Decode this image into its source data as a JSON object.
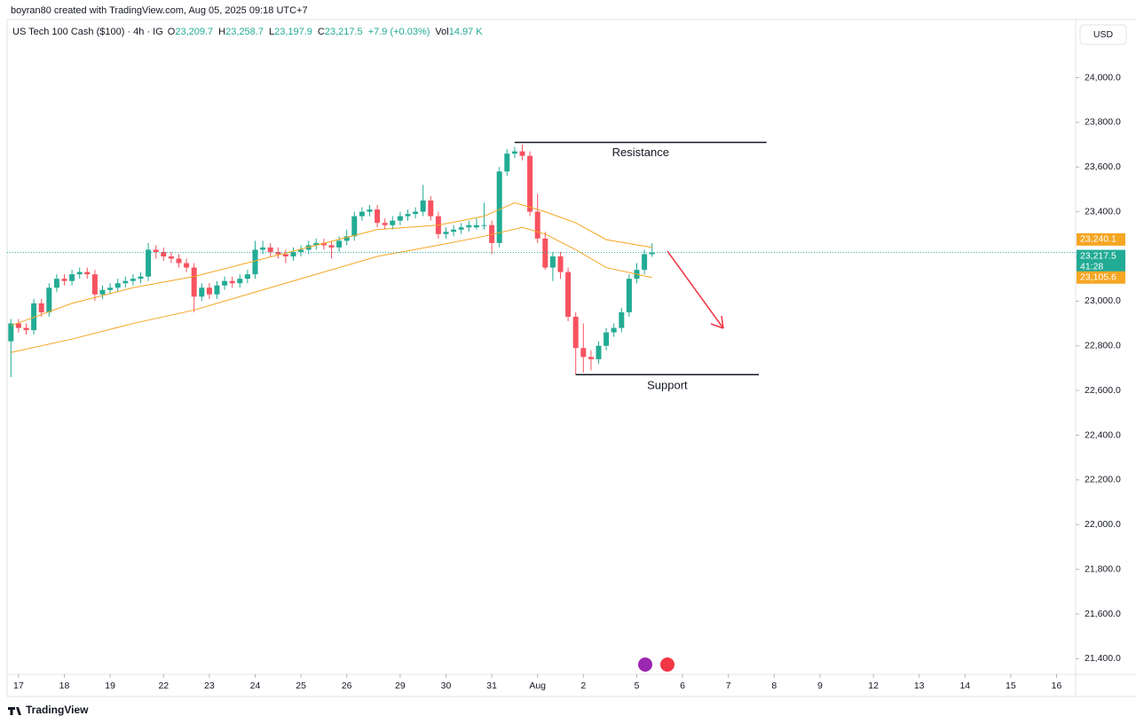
{
  "chart_data": {
    "type": "candlestick",
    "credit": "boyran80 created with TradingView.com, Aug 05, 2025 09:18 UTC+7",
    "title": "US Tech 100 Cash ($100) · 4h · IG",
    "legend": [
      {
        "label": "O",
        "value": "23,209.7"
      },
      {
        "label": "H",
        "value": "23,258.7"
      },
      {
        "label": "L",
        "value": "23,197.9"
      },
      {
        "label": "C",
        "value": "23,217.5"
      },
      {
        "label": "",
        "value": "+7.9 (+0.03%)"
      },
      {
        "label": "Vol",
        "value": "14.97 K"
      }
    ],
    "currency": "USD",
    "logo": "TradingView",
    "up_color": "#22ab94",
    "down_color": "#f7525f",
    "xlim": [
      -0.5,
      139.5
    ],
    "ylim": [
      21330,
      24260
    ],
    "xticks": [
      {
        "value": 1,
        "label": "17"
      },
      {
        "value": 7,
        "label": "18"
      },
      {
        "value": 13,
        "label": "19"
      },
      {
        "value": 20,
        "label": "22"
      },
      {
        "value": 26,
        "label": "23"
      },
      {
        "value": 32,
        "label": "24"
      },
      {
        "value": 38,
        "label": "25"
      },
      {
        "value": 44,
        "label": "26"
      },
      {
        "value": 51,
        "label": "29"
      },
      {
        "value": 57,
        "label": "30"
      },
      {
        "value": 63,
        "label": "31"
      },
      {
        "value": 69,
        "label": "Aug"
      },
      {
        "value": 75,
        "label": "2"
      },
      {
        "value": 82,
        "label": "5"
      },
      {
        "value": 88,
        "label": "6"
      },
      {
        "value": 94,
        "label": "7"
      },
      {
        "value": 100,
        "label": "8"
      },
      {
        "value": 106,
        "label": "9"
      },
      {
        "value": 113,
        "label": "12"
      },
      {
        "value": 119,
        "label": "13"
      },
      {
        "value": 125,
        "label": "14"
      },
      {
        "value": 131,
        "label": "15"
      },
      {
        "value": 137,
        "label": "16"
      }
    ],
    "yticks": [
      {
        "value": 21400,
        "label": "21,400.0"
      },
      {
        "value": 21600,
        "label": "21,600.0"
      },
      {
        "value": 21800,
        "label": "21,800.0"
      },
      {
        "value": 22000,
        "label": "22,000.0"
      },
      {
        "value": 22200,
        "label": "22,200.0"
      },
      {
        "value": 22400,
        "label": "22,400.0"
      },
      {
        "value": 22600,
        "label": "22,600.0"
      },
      {
        "value": 22800,
        "label": "22,800.0"
      },
      {
        "value": 23000,
        "label": "23,000.0"
      },
      {
        "value": 23200,
        "label": "23,200.0"
      },
      {
        "value": 23400,
        "label": "23,400.0"
      },
      {
        "value": 23600,
        "label": "23,600.0"
      },
      {
        "value": 23800,
        "label": "23,800.0"
      },
      {
        "value": 24000,
        "label": "24,000.0"
      }
    ],
    "ohlc": [
      [
        22820,
        22920,
        22660,
        22900
      ],
      [
        22900,
        22920,
        22860,
        22880
      ],
      [
        22880,
        22900,
        22850,
        22870
      ],
      [
        22870,
        23010,
        22850,
        22990
      ],
      [
        22990,
        23010,
        22930,
        22950
      ],
      [
        22950,
        23080,
        22930,
        23060
      ],
      [
        23060,
        23120,
        23040,
        23100
      ],
      [
        23100,
        23120,
        23070,
        23090
      ],
      [
        23090,
        23140,
        23070,
        23120
      ],
      [
        23120,
        23150,
        23100,
        23130
      ],
      [
        23130,
        23150,
        23100,
        23120
      ],
      [
        23120,
        23140,
        23000,
        23030
      ],
      [
        23030,
        23070,
        23010,
        23050
      ],
      [
        23050,
        23080,
        23030,
        23060
      ],
      [
        23060,
        23100,
        23040,
        23080
      ],
      [
        23080,
        23110,
        23060,
        23090
      ],
      [
        23090,
        23120,
        23070,
        23100
      ],
      [
        23100,
        23130,
        23080,
        23110
      ],
      [
        23110,
        23260,
        23090,
        23230
      ],
      [
        23230,
        23250,
        23190,
        23220
      ],
      [
        23220,
        23240,
        23180,
        23200
      ],
      [
        23200,
        23220,
        23170,
        23190
      ],
      [
        23190,
        23210,
        23150,
        23170
      ],
      [
        23170,
        23190,
        23130,
        23150
      ],
      [
        23150,
        23170,
        22950,
        23020
      ],
      [
        23020,
        23080,
        23000,
        23060
      ],
      [
        23060,
        23080,
        23010,
        23030
      ],
      [
        23030,
        23090,
        23010,
        23070
      ],
      [
        23070,
        23110,
        23050,
        23090
      ],
      [
        23090,
        23110,
        23060,
        23080
      ],
      [
        23080,
        23120,
        23060,
        23100
      ],
      [
        23100,
        23140,
        23080,
        23120
      ],
      [
        23120,
        23270,
        23100,
        23230
      ],
      [
        23230,
        23270,
        23210,
        23240
      ],
      [
        23240,
        23260,
        23200,
        23220
      ],
      [
        23220,
        23240,
        23190,
        23210
      ],
      [
        23210,
        23230,
        23170,
        23200
      ],
      [
        23200,
        23240,
        23180,
        23220
      ],
      [
        23220,
        23250,
        23200,
        23230
      ],
      [
        23230,
        23270,
        23210,
        23250
      ],
      [
        23250,
        23280,
        23230,
        23260
      ],
      [
        23260,
        23280,
        23230,
        23250
      ],
      [
        23250,
        23270,
        23190,
        23240
      ],
      [
        23240,
        23290,
        23220,
        23270
      ],
      [
        23270,
        23320,
        23250,
        23290
      ],
      [
        23290,
        23400,
        23270,
        23380
      ],
      [
        23380,
        23420,
        23360,
        23400
      ],
      [
        23400,
        23430,
        23380,
        23410
      ],
      [
        23410,
        23430,
        23330,
        23350
      ],
      [
        23350,
        23370,
        23320,
        23340
      ],
      [
        23340,
        23380,
        23320,
        23360
      ],
      [
        23360,
        23400,
        23340,
        23380
      ],
      [
        23380,
        23410,
        23360,
        23390
      ],
      [
        23390,
        23420,
        23370,
        23400
      ],
      [
        23400,
        23520,
        23380,
        23450
      ],
      [
        23450,
        23470,
        23360,
        23380
      ],
      [
        23380,
        23400,
        23280,
        23300
      ],
      [
        23300,
        23330,
        23280,
        23310
      ],
      [
        23310,
        23340,
        23290,
        23320
      ],
      [
        23320,
        23350,
        23300,
        23330
      ],
      [
        23330,
        23360,
        23310,
        23340
      ],
      [
        23330,
        23370,
        23320,
        23340
      ],
      [
        23340,
        23440,
        23320,
        23340
      ],
      [
        23340,
        23360,
        23210,
        23260
      ],
      [
        23260,
        23600,
        23240,
        23580
      ],
      [
        23580,
        23680,
        23560,
        23660
      ],
      [
        23660,
        23690,
        23640,
        23670
      ],
      [
        23670,
        23700,
        23630,
        23650
      ],
      [
        23650,
        23670,
        23380,
        23400
      ],
      [
        23400,
        23480,
        23260,
        23280
      ],
      [
        23280,
        23310,
        23140,
        23150
      ],
      [
        23150,
        23220,
        23090,
        23200
      ],
      [
        23200,
        23220,
        23100,
        23130
      ],
      [
        23130,
        23150,
        22910,
        22930
      ],
      [
        22930,
        22950,
        22670,
        22790
      ],
      [
        22790,
        22900,
        22680,
        22750
      ],
      [
        22750,
        22780,
        22690,
        22740
      ],
      [
        22740,
        22820,
        22720,
        22800
      ],
      [
        22800,
        22880,
        22780,
        22860
      ],
      [
        22860,
        22900,
        22840,
        22880
      ],
      [
        22880,
        22970,
        22860,
        22950
      ],
      [
        22950,
        23120,
        22930,
        23100
      ],
      [
        23100,
        23170,
        23080,
        23140
      ],
      [
        23140,
        23230,
        23120,
        23210
      ],
      [
        23209.7,
        23258.7,
        23197.9,
        23217.5
      ]
    ],
    "lines": [
      {
        "color": "#f5a623",
        "x": [
          0,
          8,
          16,
          24,
          32,
          40,
          48,
          56,
          62,
          66,
          70,
          74,
          78,
          84
        ],
        "values": [
          22890,
          22990,
          23060,
          23110,
          23180,
          23250,
          23320,
          23340,
          23380,
          23440,
          23400,
          23350,
          23275,
          23240.1
        ]
      },
      {
        "color": "#f5a623",
        "x": [
          0,
          8,
          16,
          24,
          32,
          40,
          48,
          56,
          62,
          67,
          70,
          74,
          78,
          84
        ],
        "values": [
          22770,
          22830,
          22900,
          22960,
          23040,
          23120,
          23200,
          23250,
          23290,
          23330,
          23300,
          23230,
          23150,
          23105.6
        ]
      }
    ],
    "levels": [
      {
        "label": "Resistance",
        "value": 23710,
        "x": [
          66,
          99
        ]
      },
      {
        "label": "Support",
        "value": 22671,
        "x": [
          74,
          98
        ]
      }
    ],
    "price_labels": [
      {
        "value": 23240.1,
        "label": "23,240.1",
        "color": "#f5a623"
      },
      {
        "value": 23217.5,
        "label": "23,217.5",
        "countdown": "41:28",
        "color": "#22ab94"
      },
      {
        "value": 23105.6,
        "label": "23,105.6",
        "color": "#f5a623"
      }
    ]
  }
}
